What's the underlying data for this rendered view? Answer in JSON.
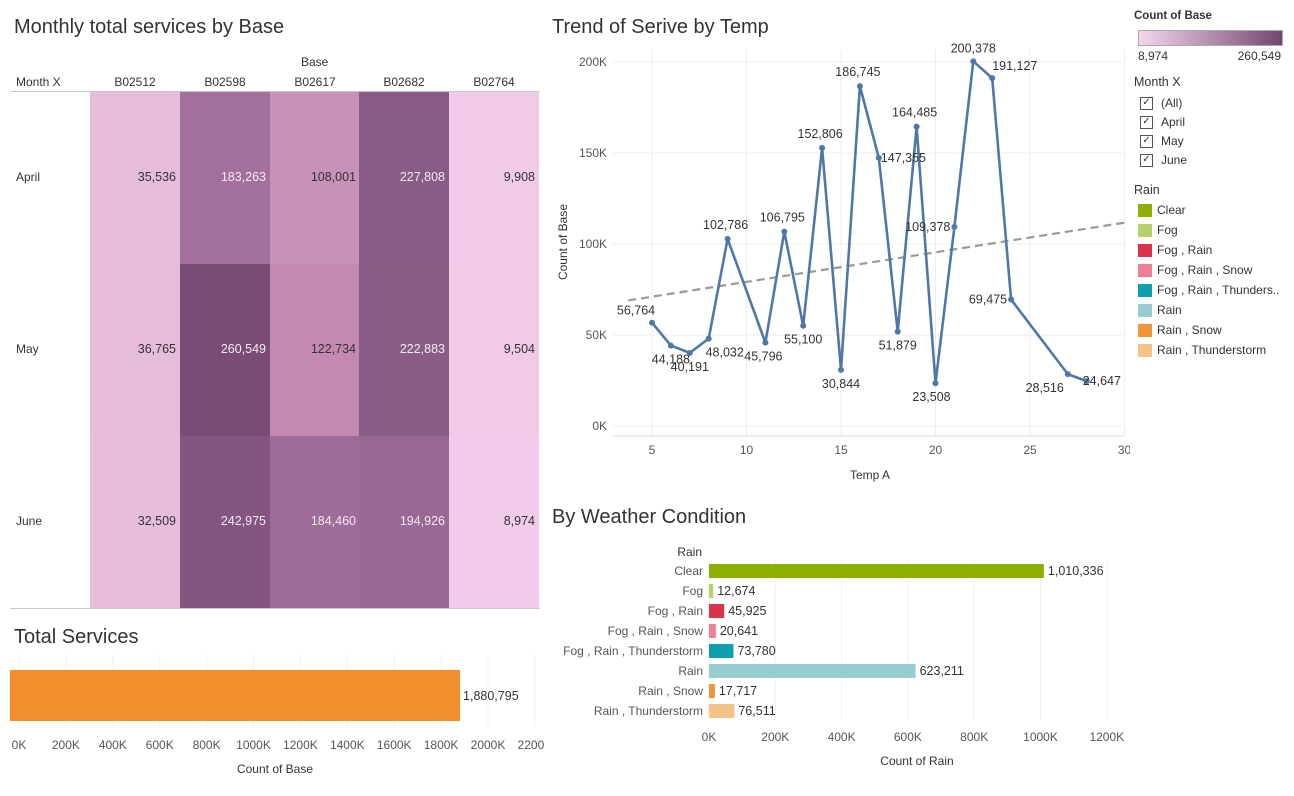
{
  "heatmap": {
    "title": "Monthly total services by Base",
    "col_group_header": "Base",
    "row_header": "Month X",
    "columns": [
      "B02512",
      "B02598",
      "B02617",
      "B02682",
      "B02764"
    ],
    "rows": [
      {
        "label": "April",
        "values": [
          "35,536",
          "183,263",
          "108,001",
          "227,808",
          "9,908"
        ],
        "colors": [
          "#e6bcdb",
          "#a36f9d",
          "#c891b8",
          "#895b86",
          "#f0cbe7"
        ]
      },
      {
        "label": "May",
        "values": [
          "36,765",
          "260,549",
          "122,734",
          "222,883",
          "9,504"
        ],
        "colors": [
          "#e6bcdb",
          "#7a4b75",
          "#c389b1",
          "#8a5d87",
          "#f0cbe7"
        ]
      },
      {
        "label": "June",
        "values": [
          "32,509",
          "242,975",
          "184,460",
          "194,926",
          "8,974"
        ],
        "colors": [
          "#e7bddc",
          "#835580",
          "#9f6c99",
          "#9a6895",
          "#f1ccea"
        ]
      }
    ]
  },
  "total": {
    "title": "Total Services",
    "value_label": "1,880,795",
    "value": 1880795,
    "xlabel": "Count of Base",
    "ticks": [
      "0K",
      "200K",
      "400K",
      "600K",
      "800K",
      "1000K",
      "1200K",
      "1400K",
      "1600K",
      "1800K",
      "2000K",
      "2200K"
    ],
    "bar_color": "#f28e2b"
  },
  "trend": {
    "title": "Trend of Serive by Temp",
    "xlabel": "Temp A",
    "ylabel": "Count of Base",
    "x_ticks": [
      "5",
      "10",
      "15",
      "20",
      "25",
      "30"
    ],
    "y_ticks": [
      "0K",
      "50K",
      "100K",
      "150K",
      "200K"
    ],
    "line_color": "#4e79a7",
    "trend_line_color": "#999999"
  },
  "weather": {
    "title": "By Weather Condition",
    "row_header": "Rain",
    "xlabel": "Count of Rain",
    "ticks": [
      "0K",
      "200K",
      "400K",
      "600K",
      "800K",
      "1000K",
      "1200K"
    ]
  },
  "legend": {
    "color_title": "Count of Base",
    "color_min": "8,974",
    "color_max": "260,549",
    "filter_title": "Month X",
    "filter_items": [
      "(All)",
      "April",
      "May",
      "June"
    ],
    "check_mark": "✓",
    "rain_title": "Rain",
    "rain_items": [
      {
        "label": "Clear",
        "color": "#8db000"
      },
      {
        "label": "Fog",
        "color": "#b5d26a"
      },
      {
        "label": "Fog , Rain",
        "color": "#d8354a"
      },
      {
        "label": "Fog , Rain , Snow",
        "color": "#ef7f93"
      },
      {
        "label": "Fog , Rain , Thunders..",
        "color": "#0e9fae"
      },
      {
        "label": "Rain",
        "color": "#96cdd0"
      },
      {
        "label": "Rain , Snow",
        "color": "#f0953a"
      },
      {
        "label": "Rain , Thunderstorm",
        "color": "#f6c387"
      }
    ]
  },
  "chart_data": [
    {
      "type": "heatmap",
      "title": "Monthly total services by Base",
      "x": [
        "B02512",
        "B02598",
        "B02617",
        "B02682",
        "B02764"
      ],
      "y": [
        "April",
        "May",
        "June"
      ],
      "values": [
        [
          35536,
          183263,
          108001,
          227808,
          9908
        ],
        [
          36765,
          260549,
          122734,
          222883,
          9504
        ],
        [
          32509,
          242975,
          184460,
          194926,
          8974
        ]
      ],
      "color_range": [
        8974,
        260549
      ]
    },
    {
      "type": "bar",
      "title": "Total Services",
      "categories": [
        ""
      ],
      "values": [
        1880795
      ],
      "xlabel": "Count of Base",
      "xlim": [
        0,
        2300000
      ]
    },
    {
      "type": "line",
      "title": "Trend of Serive by Temp",
      "xlabel": "Temp A",
      "ylabel": "Count of Base",
      "xlim": [
        3,
        30
      ],
      "ylim": [
        0,
        210000
      ],
      "series": [
        {
          "x": [
            5,
            6,
            7,
            8,
            9,
            11,
            12,
            13,
            14,
            15,
            16,
            17,
            18,
            19,
            20,
            21,
            22,
            23,
            24,
            27,
            28
          ],
          "values": [
            56764,
            44188,
            40191,
            48032,
            102786,
            45796,
            106795,
            55100,
            152806,
            30844,
            186745,
            147355,
            51879,
            164485,
            23508,
            109378,
            200378,
            191127,
            69475,
            28516,
            24647
          ]
        }
      ],
      "point_labels": [
        "56,764",
        "44,188",
        "40,191",
        "48,032",
        "102,786",
        "45,796",
        "106,795",
        "55,100",
        "152,806",
        "30,844",
        "186,745",
        "147,355",
        "51,879",
        "164,485",
        "23,508",
        "109,378",
        "200,378",
        "191,127",
        "69,475",
        "28,516",
        "24,647"
      ],
      "trend_line": {
        "x": [
          3,
          30
        ],
        "y": [
          69000,
          112000
        ]
      },
      "grid": true
    },
    {
      "type": "bar",
      "title": "By Weather Condition",
      "categories": [
        "Clear",
        "Fog",
        "Fog , Rain",
        "Fog , Rain , Snow",
        "Fog , Rain , Thunderstorm",
        "Rain",
        "Rain , Snow",
        "Rain , Thunderstorm"
      ],
      "values": [
        1010336,
        12674,
        45925,
        20641,
        73780,
        623211,
        17717,
        76511
      ],
      "value_labels": [
        "1,010,336",
        "12,674",
        "45,925",
        "20,641",
        "73,780",
        "623,211",
        "17,717",
        "76,511"
      ],
      "colors": [
        "#8db000",
        "#b5d26a",
        "#d8354a",
        "#ef7f93",
        "#0e9fae",
        "#96cdd0",
        "#f0953a",
        "#f6c387"
      ],
      "xlabel": "Count of Rain",
      "xlim": [
        0,
        1250000
      ]
    }
  ]
}
